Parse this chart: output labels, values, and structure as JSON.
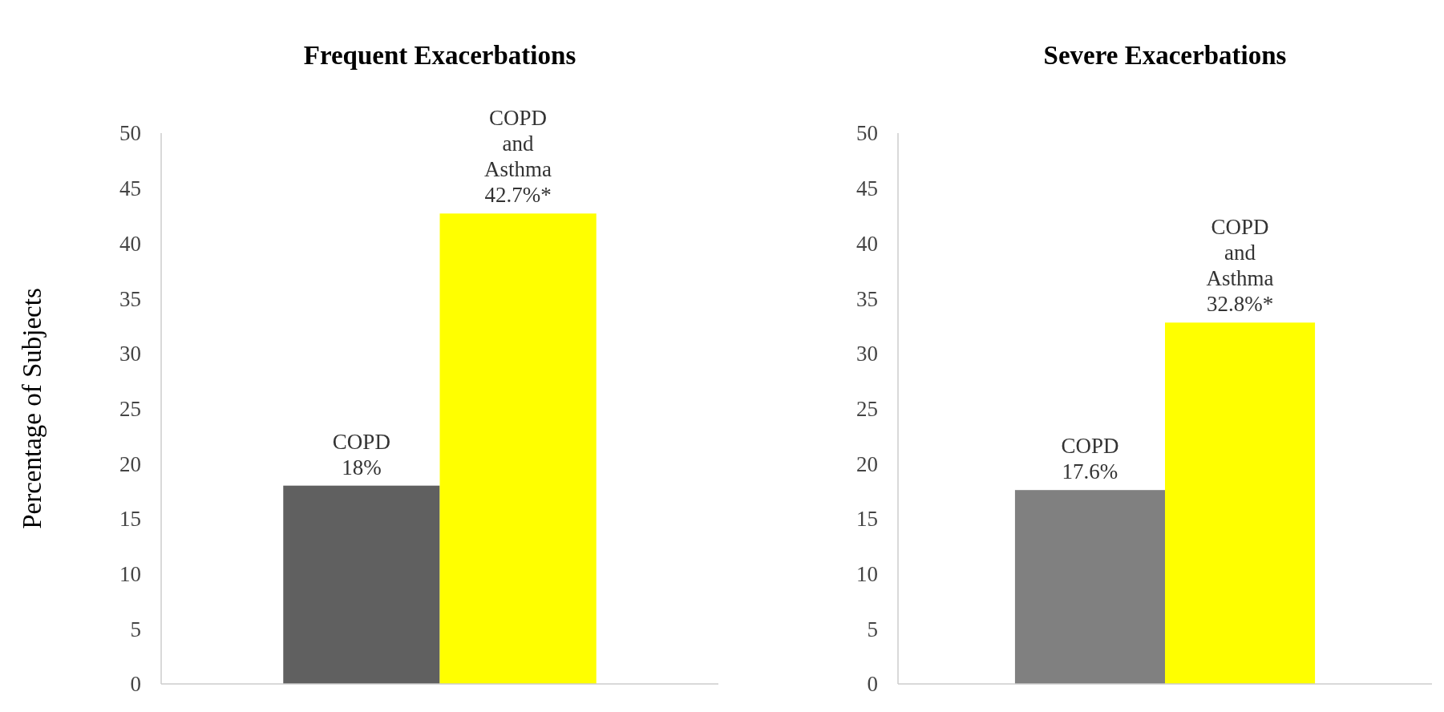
{
  "chart_data": [
    {
      "type": "bar",
      "title": "Frequent Exacerbations",
      "ylabel": "Percentage of Subjects",
      "categories": [
        null,
        null
      ],
      "values": [
        18,
        42.7
      ],
      "colors": [
        "#606060",
        "#ffff00"
      ],
      "value_labels": [
        "COPD\n18%",
        "COPD\nand\nAsthma\n42.7%*"
      ],
      "ylim": [
        0,
        50
      ],
      "yticks": [
        0,
        5,
        10,
        15,
        20,
        25,
        30,
        35,
        40,
        45,
        50
      ],
      "grid": false
    },
    {
      "type": "bar",
      "title": "Severe Exacerbations",
      "categories": [
        null,
        null
      ],
      "values": [
        17.6,
        32.8
      ],
      "colors": [
        "#808080",
        "#ffff00"
      ],
      "value_labels": [
        "COPD\n17.6%",
        "COPD\nand\nAsthma\n32.8%*"
      ],
      "ylim": [
        0,
        50
      ],
      "yticks": [
        0,
        5,
        10,
        15,
        20,
        25,
        30,
        35,
        40,
        45,
        50
      ],
      "grid": false
    }
  ]
}
